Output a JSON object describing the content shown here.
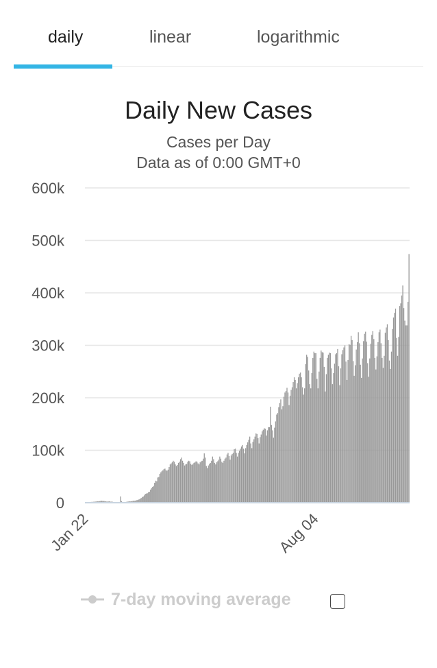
{
  "tabs": [
    {
      "label": "daily",
      "active": true
    },
    {
      "label": "linear",
      "active": false
    },
    {
      "label": "logarithmic",
      "active": false
    }
  ],
  "colors": {
    "accent": "#33b5e5",
    "bar": "#999999",
    "grid": "#e6e6e6",
    "legend_disabled": "#cccccc"
  },
  "legend": {
    "label": "7-day moving average",
    "enabled": false
  },
  "chart_data": {
    "type": "bar",
    "title": "Daily New Cases",
    "subtitle": [
      "Cases per Day",
      "Data as of 0:00 GMT+0"
    ],
    "xlabel": "",
    "ylabel": "",
    "x_start": "Jan 22",
    "x_tick_labels": [
      "Jan 22",
      "Aug 04"
    ],
    "y_ticks": [
      0,
      100000,
      200000,
      300000,
      400000,
      500000,
      600000
    ],
    "y_tick_labels": [
      "0",
      "100k",
      "200k",
      "300k",
      "400k",
      "500k",
      "600k"
    ],
    "ylim": [
      0,
      600000
    ],
    "grid": true,
    "series": [
      {
        "values": [
          500,
          500,
          700,
          800,
          1000,
          1200,
          1500,
          1600,
          1800,
          2000,
          2100,
          2500,
          2600,
          2700,
          3000,
          3800,
          3800,
          3200,
          3400,
          2800,
          2500,
          2000,
          2400,
          2600,
          2100,
          1900,
          2100,
          1000,
          500,
          1000,
          400,
          600,
          800,
          700,
          12000,
          3000,
          600,
          800,
          1200,
          1300,
          1800,
          2000,
          2500,
          2500,
          2700,
          3000,
          3500,
          4000,
          3800,
          4500,
          5000,
          5500,
          6500,
          7500,
          9000,
          10500,
          12000,
          14000,
          17000,
          17500,
          18000,
          20000,
          21000,
          25000,
          28000,
          30000,
          32000,
          38000,
          42000,
          41000,
          48000,
          49000,
          55000,
          58000,
          60000,
          62000,
          64000,
          65000,
          62000,
          61000,
          63000,
          68000,
          73000,
          75000,
          77000,
          80000,
          78000,
          73000,
          70000,
          72000,
          76000,
          78000,
          83000,
          86000,
          80000,
          76000,
          71000,
          73000,
          74000,
          78000,
          80000,
          79000,
          74000,
          72000,
          74000,
          76000,
          77000,
          79000,
          78000,
          75000,
          73000,
          77000,
          79000,
          80000,
          84000,
          94000,
          86000,
          70000,
          66000,
          71000,
          74000,
          76000,
          80000,
          88000,
          83000,
          76000,
          73000,
          77000,
          79000,
          82000,
          88000,
          84000,
          78000,
          76000,
          80000,
          84000,
          86000,
          92000,
          95000,
          89000,
          82000,
          90000,
          93000,
          95000,
          102000,
          103000,
          95000,
          88000,
          95000,
          99000,
          103000,
          107000,
          110000,
          103000,
          94000,
          104000,
          110000,
          115000,
          120000,
          126000,
          113000,
          104000,
          116000,
          121000,
          126000,
          132000,
          131000,
          123000,
          113000,
          125000,
          130000,
          136000,
          139000,
          142000,
          141000,
          128000,
          138000,
          144000,
          144000,
          183000,
          148000,
          138000,
          124000,
          143000,
          155000,
          168000,
          171000,
          182000,
          190000,
          197000,
          178000,
          184000,
          202000,
          210000,
          213000,
          219000,
          210000,
          186000,
          204000,
          215000,
          220000,
          230000,
          239000,
          234000,
          218000,
          228000,
          239000,
          246000,
          248000,
          239000,
          220000,
          206000,
          218000,
          264000,
          282000,
          278000,
          252000,
          226000,
          218000,
          247000,
          276000,
          288000,
          285000,
          285000,
          236000,
          218000,
          250000,
          276000,
          290000,
          287000,
          286000,
          259000,
          212000,
          245000,
          276000,
          282000,
          286000,
          285000,
          256000,
          226000,
          247000,
          265000,
          283000,
          285000,
          293000,
          260000,
          224000,
          256000,
          283000,
          291000,
          296000,
          300000,
          269000,
          234000,
          272000,
          302000,
          301000,
          318000,
          310000,
          270000,
          242000,
          262000,
          292000,
          306000,
          325000,
          304000,
          263000,
          238000,
          275000,
          308000,
          322000,
          326000,
          307000,
          266000,
          240000,
          275000,
          303000,
          320000,
          327000,
          312000,
          276000,
          254000,
          279000,
          306000,
          325000,
          330000,
          304000,
          276000,
          257000,
          280000,
          324000,
          334000,
          340000,
          310000,
          271000,
          255000,
          288000,
          331000,
          353000,
          362000,
          370000,
          314000,
          280000,
          316000,
          375000,
          380000,
          395000,
          414000,
          371000,
          347000,
          338000,
          338000,
          383000,
          474000
        ]
      }
    ]
  }
}
